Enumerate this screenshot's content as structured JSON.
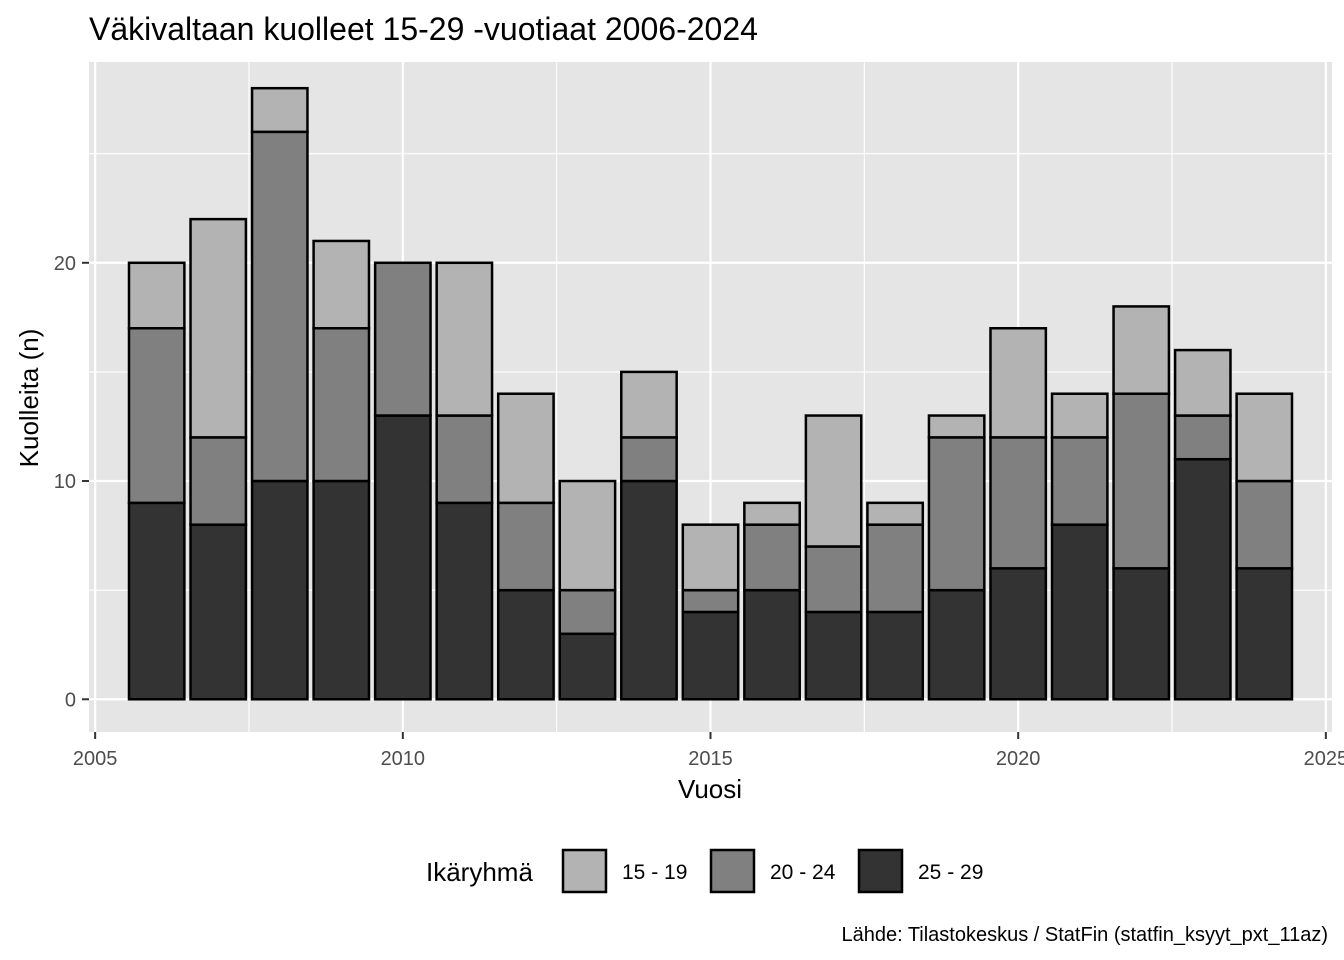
{
  "chart_data": {
    "type": "bar",
    "stacked": true,
    "title": "Väkivaltaan kuolleet 15-29 -vuotiaat 2006-2024",
    "xlabel": "Vuosi",
    "ylabel": "Kuolleita (n)",
    "caption": "Lähde: Tilastokeskus / StatFin (statfin_ksyyt_pxt_11az)",
    "x": [
      2006,
      2007,
      2008,
      2009,
      2010,
      2011,
      2012,
      2013,
      2014,
      2015,
      2016,
      2017,
      2018,
      2019,
      2020,
      2021,
      2022,
      2023,
      2024
    ],
    "series": [
      {
        "name": "25 - 29",
        "color": "#333333",
        "values": [
          9,
          8,
          10,
          10,
          13,
          9,
          5,
          3,
          10,
          4,
          5,
          4,
          4,
          5,
          6,
          8,
          6,
          11,
          6
        ]
      },
      {
        "name": "20 - 24",
        "color": "#808080",
        "values": [
          8,
          4,
          16,
          7,
          7,
          4,
          4,
          2,
          2,
          1,
          3,
          3,
          4,
          7,
          6,
          4,
          8,
          2,
          4
        ]
      },
      {
        "name": "15 - 19",
        "color": "#b3b3b3",
        "values": [
          3,
          10,
          2,
          4,
          0,
          7,
          5,
          5,
          3,
          3,
          1,
          6,
          1,
          1,
          5,
          2,
          4,
          3,
          4
        ]
      }
    ],
    "xlim": [
      2004.9,
      2025.1
    ],
    "ylim": [
      -1.5,
      29.2
    ],
    "x_ticks": [
      "2005",
      "2010",
      "2015",
      "2020",
      "2025"
    ],
    "y_ticks": [
      "0",
      "10",
      "20"
    ],
    "legend_title": "Ikäryhmä",
    "legend_order": [
      "15 - 19",
      "20 - 24",
      "25 - 29"
    ],
    "legend_position": "bottom",
    "grid": true,
    "panel_color": "#e5e5e5",
    "bar_outline_color": "#000000"
  }
}
